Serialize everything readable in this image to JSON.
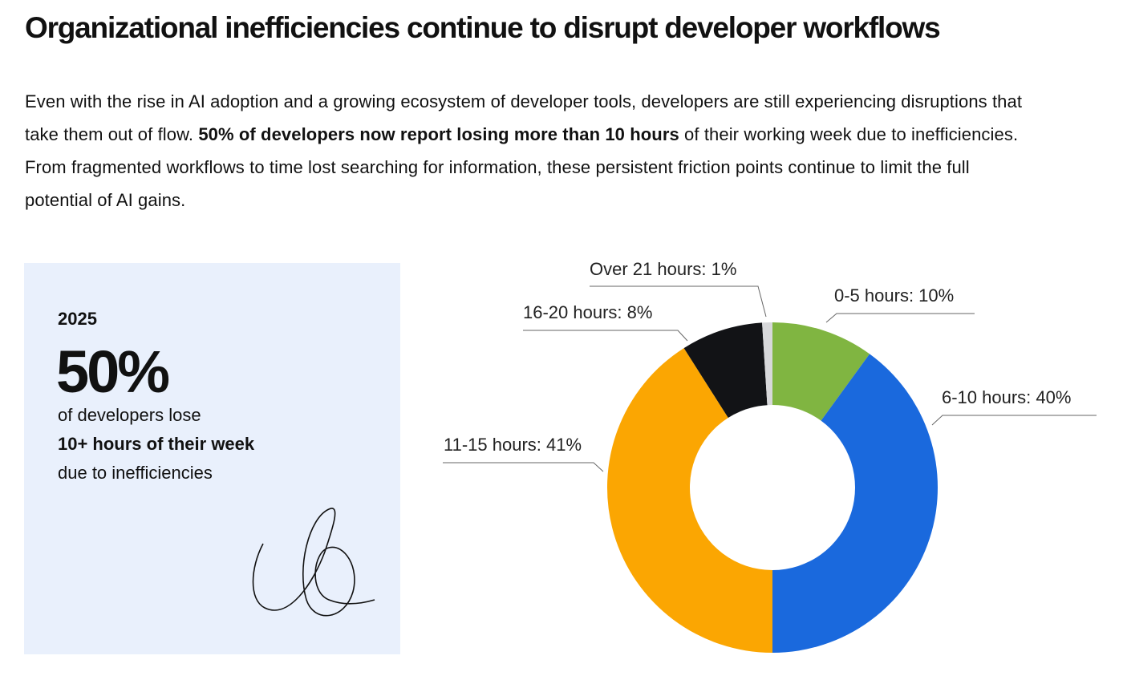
{
  "header": {
    "title": "Organizational inefficiencies continue to disrupt developer workflows"
  },
  "intro": [
    "Even with the rise in AI adoption and a growing ecosystem of developer tools, developers are still experiencing disruptions that take them out of flow. ",
    "50% of developers now report losing more than 10 hours",
    " of their working week due to inefficiencies. From fragmented workflows to time lost searching for information, these persistent friction points continue to limit the full potential of AI gains."
  ],
  "stat_card": {
    "year": "2025",
    "figure": "50%",
    "lines": [
      "of developers lose",
      "10+ hours of their week",
      "due to inefficiencies"
    ]
  },
  "chart_data": {
    "type": "donut",
    "values": [
      10,
      40,
      41,
      8,
      1
    ],
    "value_labels": [
      "0-5 hours: 10%",
      "6-10 hours: 40%",
      "11-15 hours: 41%",
      "16-20 hours: 8%",
      "Over 21 hours: 1%"
    ],
    "colors": [
      "#80b541",
      "#1a69dd",
      "#fba602",
      "#121316",
      "#d7d8da"
    ]
  }
}
